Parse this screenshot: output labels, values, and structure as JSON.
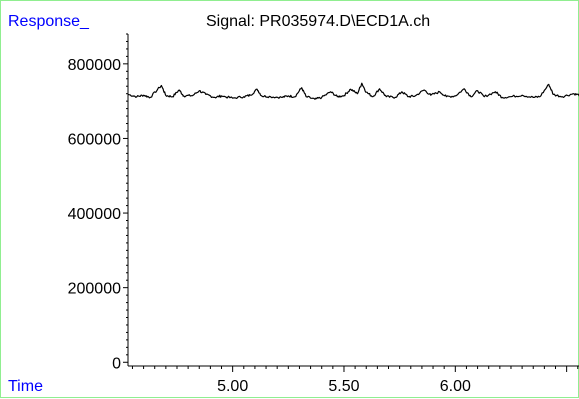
{
  "chart_data": {
    "type": "line",
    "title": "Signal: PR035974.D\\ECD1A.ch",
    "ylabel": "Response_",
    "xlabel": "Time",
    "xlim": [
      4.53,
      6.56
    ],
    "ylim": [
      -10000,
      880000
    ],
    "x_ticks": [
      5.0,
      5.5,
      6.0
    ],
    "x_tick_labels": [
      "5.00",
      "5.50",
      "6.00"
    ],
    "y_ticks": [
      0,
      200000,
      400000,
      600000,
      800000
    ],
    "y_tick_labels": [
      "0",
      "200000",
      "400000",
      "600000",
      "800000"
    ],
    "grid": false,
    "series": [
      {
        "points": [
          [
            4.53,
            718000
          ],
          [
            4.57,
            712000
          ],
          [
            4.6,
            716000
          ],
          [
            4.63,
            710000
          ],
          [
            4.68,
            742000
          ],
          [
            4.7,
            715000
          ],
          [
            4.73,
            712000
          ],
          [
            4.76,
            730000
          ],
          [
            4.78,
            714000
          ],
          [
            4.82,
            715000
          ],
          [
            4.85,
            728000
          ],
          [
            4.88,
            718000
          ],
          [
            4.92,
            710000
          ],
          [
            4.95,
            714000
          ],
          [
            5.0,
            708000
          ],
          [
            5.05,
            712000
          ],
          [
            5.08,
            716000
          ],
          [
            5.11,
            732000
          ],
          [
            5.13,
            714000
          ],
          [
            5.17,
            712000
          ],
          [
            5.22,
            710000
          ],
          [
            5.25,
            714000
          ],
          [
            5.28,
            712000
          ],
          [
            5.31,
            736000
          ],
          [
            5.33,
            712000
          ],
          [
            5.37,
            705000
          ],
          [
            5.4,
            710000
          ],
          [
            5.44,
            725000
          ],
          [
            5.47,
            712000
          ],
          [
            5.5,
            715000
          ],
          [
            5.53,
            732000
          ],
          [
            5.56,
            720000
          ],
          [
            5.58,
            748000
          ],
          [
            5.6,
            724000
          ],
          [
            5.63,
            712000
          ],
          [
            5.66,
            733000
          ],
          [
            5.69,
            712000
          ],
          [
            5.73,
            710000
          ],
          [
            5.76,
            725000
          ],
          [
            5.79,
            712000
          ],
          [
            5.82,
            714000
          ],
          [
            5.86,
            730000
          ],
          [
            5.89,
            716000
          ],
          [
            5.93,
            725000
          ],
          [
            5.96,
            712000
          ],
          [
            6.0,
            714000
          ],
          [
            6.04,
            733000
          ],
          [
            6.07,
            712000
          ],
          [
            6.1,
            728000
          ],
          [
            6.13,
            712000
          ],
          [
            6.18,
            725000
          ],
          [
            6.21,
            710000
          ],
          [
            6.25,
            712000
          ],
          [
            6.3,
            716000
          ],
          [
            6.35,
            710000
          ],
          [
            6.38,
            712000
          ],
          [
            6.42,
            745000
          ],
          [
            6.44,
            718000
          ],
          [
            6.48,
            712000
          ],
          [
            6.53,
            720000
          ],
          [
            6.56,
            716000
          ]
        ]
      }
    ],
    "colors": {
      "line": "#000000",
      "axis": "#000000",
      "corner_labels": "#0000ff",
      "frame": "#90ee90"
    }
  }
}
